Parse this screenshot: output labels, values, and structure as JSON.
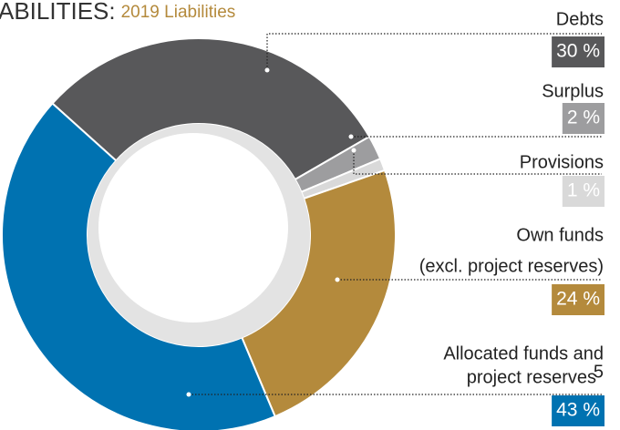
{
  "chart_data": {
    "type": "donut",
    "title": "ABILITIES:",
    "subtitle": "2019 Liabilities",
    "categories": [
      [
        "Debts"
      ],
      [
        "Surplus"
      ],
      [
        "Provisions"
      ],
      [
        "Own funds",
        "(excl. project reserves)"
      ],
      [
        "Allocated funds and",
        "project reserves"
      ]
    ],
    "footnotes": [
      null,
      null,
      null,
      null,
      "5"
    ],
    "values": [
      30,
      2,
      1,
      24,
      43
    ],
    "value_labels": [
      "30 %",
      "2 %",
      "1 %",
      "24 %",
      "43 %"
    ],
    "colors": [
      "#58585a",
      "#9d9d9f",
      "#d9d9d9",
      "#b48a3c",
      "#0072b1"
    ]
  }
}
